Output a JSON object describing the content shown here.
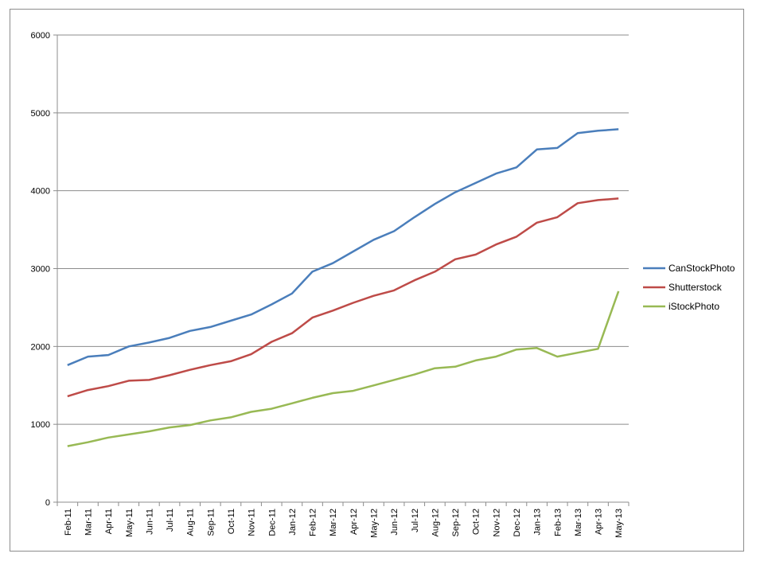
{
  "chart_data": {
    "type": "line",
    "title": "",
    "xlabel": "",
    "ylabel": "",
    "ylim": [
      0,
      6000
    ],
    "yticks": [
      0,
      1000,
      2000,
      3000,
      4000,
      5000,
      6000
    ],
    "grid": "horizontal",
    "legend": "right",
    "categories": [
      "Feb-11",
      "Mar-11",
      "Apr-11",
      "May-11",
      "Jun-11",
      "Jul-11",
      "Aug-11",
      "Sep-11",
      "Oct-11",
      "Nov-11",
      "Dec-11",
      "Jan-12",
      "Feb-12",
      "Mar-12",
      "Apr-12",
      "May-12",
      "Jun-12",
      "Jul-12",
      "Aug-12",
      "Sep-12",
      "Oct-12",
      "Nov-12",
      "Dec-12",
      "Jan-13",
      "Feb-13",
      "Mar-13",
      "Apr-13",
      "May-13"
    ],
    "series": [
      {
        "name": "CanStockPhoto",
        "color": "#4a7ebb",
        "values": [
          1760,
          1870,
          1890,
          2000,
          2050,
          2110,
          2200,
          2250,
          2330,
          2410,
          2540,
          2680,
          2960,
          3070,
          3220,
          3370,
          3480,
          3660,
          3830,
          3980,
          4100,
          4220,
          4300,
          4530,
          4550,
          4740,
          4770,
          4790
        ]
      },
      {
        "name": "Shutterstock",
        "color": "#be4b48",
        "values": [
          1360,
          1440,
          1490,
          1560,
          1570,
          1630,
          1700,
          1760,
          1810,
          1900,
          2060,
          2170,
          2370,
          2460,
          2560,
          2650,
          2720,
          2850,
          2960,
          3120,
          3180,
          3310,
          3410,
          3590,
          3660,
          3840,
          3880,
          3900
        ]
      },
      {
        "name": "iStockPhoto",
        "color": "#98b954",
        "values": [
          720,
          770,
          830,
          870,
          910,
          960,
          990,
          1050,
          1090,
          1160,
          1200,
          1270,
          1340,
          1400,
          1430,
          1500,
          1570,
          1640,
          1720,
          1740,
          1820,
          1870,
          1960,
          1980,
          1870,
          1920,
          1970,
          2710
        ]
      }
    ]
  }
}
